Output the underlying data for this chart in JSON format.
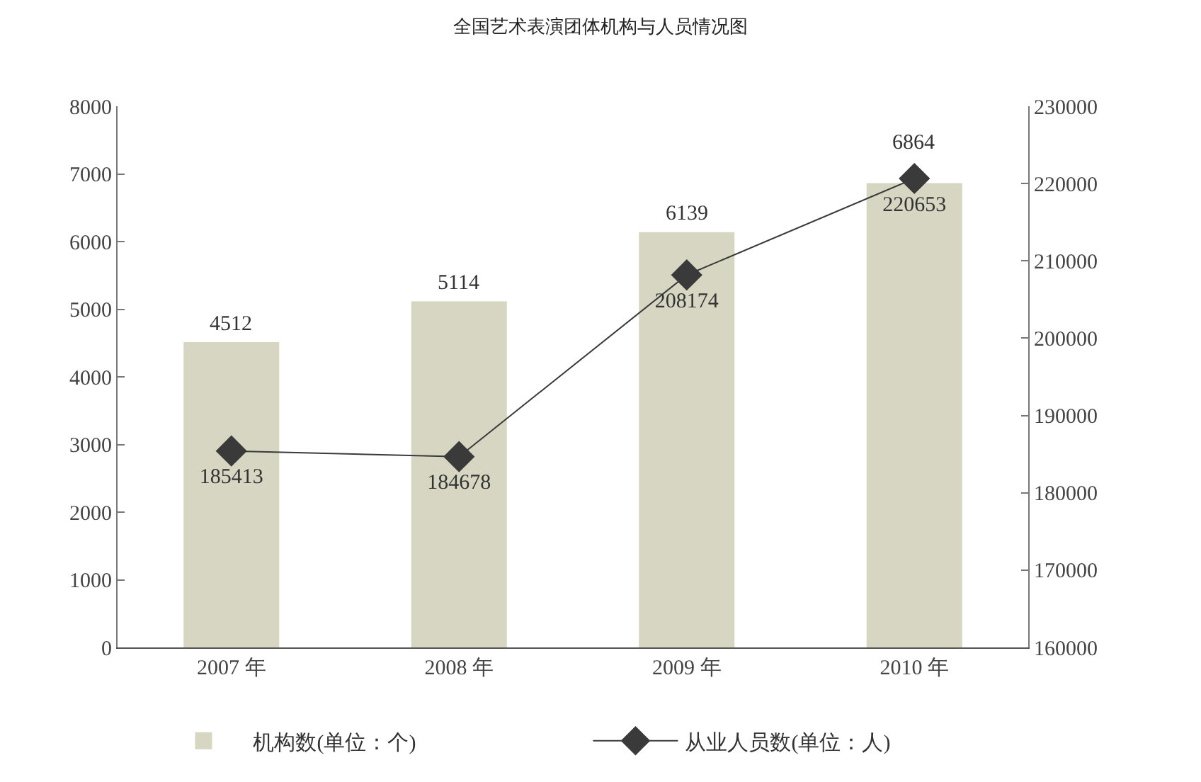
{
  "chart_data": {
    "type": "bar",
    "title": "全国艺术表演团体机构与人员情况图",
    "categories": [
      "2007 年",
      "2008 年",
      "2009 年",
      "2010 年"
    ],
    "series": [
      {
        "name": "机构数(单位：个)",
        "color": "#d6d6c2",
        "values": [
          4512,
          5114,
          6139,
          6864
        ]
      },
      {
        "name": "从业人员数(单位：人)",
        "type": "line",
        "axis": "y2",
        "color": "#3a3a3a",
        "values": [
          185413,
          184678,
          208174,
          220653
        ]
      }
    ],
    "ylim": [
      0,
      8000
    ],
    "yticks": [
      0,
      1000,
      2000,
      3000,
      4000,
      5000,
      6000,
      7000,
      8000
    ],
    "y2lim": [
      160000,
      230000
    ],
    "y2ticks": [
      160000,
      170000,
      180000,
      190000,
      200000,
      210000,
      220000,
      230000
    ],
    "data_labels": true,
    "legend": "bottom",
    "grid": false,
    "marker": "diamond",
    "line_style": "solid"
  }
}
